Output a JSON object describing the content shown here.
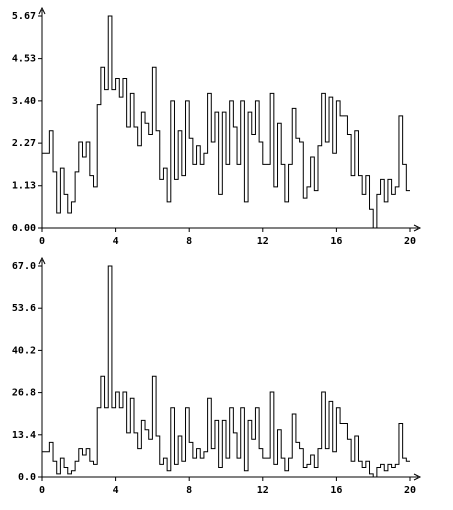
{
  "chart_data": [
    {
      "type": "line",
      "step": true,
      "color": "#000000",
      "x": [
        0,
        0.2,
        0.4,
        0.6,
        0.8,
        1,
        1.2,
        1.4,
        1.6,
        1.8,
        2,
        2.2,
        2.4,
        2.6,
        2.8,
        3,
        3.2,
        3.4,
        3.6,
        3.8,
        4,
        4.2,
        4.4,
        4.6,
        4.8,
        5,
        5.2,
        5.4,
        5.6,
        5.8,
        6,
        6.2,
        6.4,
        6.6,
        6.8,
        7,
        7.2,
        7.4,
        7.6,
        7.8,
        8,
        8.2,
        8.4,
        8.6,
        8.8,
        9,
        9.2,
        9.4,
        9.6,
        9.8,
        10,
        10.2,
        10.4,
        10.6,
        10.8,
        11,
        11.2,
        11.4,
        11.6,
        11.8,
        12,
        12.2,
        12.4,
        12.6,
        12.8,
        13,
        13.2,
        13.4,
        13.6,
        13.8,
        14,
        14.2,
        14.4,
        14.6,
        14.8,
        15,
        15.2,
        15.4,
        15.6,
        15.8,
        16,
        16.2,
        16.4,
        16.6,
        16.8,
        17,
        17.2,
        17.4,
        17.6,
        17.8,
        18,
        18.2,
        18.4,
        18.6,
        18.8,
        19,
        19.2,
        19.4,
        19.6,
        19.8
      ],
      "values": [
        2.0,
        2.0,
        2.6,
        1.5,
        0.4,
        1.6,
        0.9,
        0.4,
        0.7,
        1.5,
        2.3,
        1.9,
        2.3,
        1.4,
        1.1,
        3.3,
        4.3,
        3.7,
        5.67,
        3.7,
        4.0,
        3.5,
        4.0,
        2.7,
        3.6,
        2.7,
        2.2,
        3.1,
        2.8,
        2.5,
        4.3,
        2.6,
        1.3,
        1.6,
        0.7,
        3.4,
        1.3,
        2.6,
        1.4,
        3.4,
        2.4,
        1.7,
        2.2,
        1.7,
        2.0,
        3.6,
        2.3,
        3.1,
        0.9,
        3.1,
        1.7,
        3.4,
        2.7,
        1.7,
        3.4,
        0.7,
        3.1,
        2.5,
        3.4,
        2.3,
        1.7,
        1.7,
        3.6,
        1.1,
        2.8,
        1.7,
        0.7,
        1.7,
        3.2,
        2.4,
        2.3,
        0.8,
        1.1,
        1.9,
        1.0,
        2.2,
        3.6,
        2.3,
        3.5,
        2.0,
        3.4,
        3.0,
        3.0,
        2.5,
        1.4,
        2.6,
        1.4,
        0.9,
        1.4,
        0.5,
        0.0,
        0.9,
        1.3,
        0.7,
        1.3,
        0.9,
        1.1,
        3.0,
        1.7,
        1.0
      ],
      "xlim": [
        0,
        20
      ],
      "xticks": [
        0,
        4,
        8,
        12,
        16,
        20
      ],
      "ylim": [
        0,
        5.67
      ],
      "yticks": [
        {
          "value": 0,
          "label": "0.00"
        },
        1.13,
        2.27,
        {
          "value": 3.4,
          "label": "3.40"
        },
        4.53,
        5.67
      ]
    },
    {
      "type": "line",
      "step": true,
      "color": "#000000",
      "x": [
        0,
        0.2,
        0.4,
        0.6,
        0.8,
        1,
        1.2,
        1.4,
        1.6,
        1.8,
        2,
        2.2,
        2.4,
        2.6,
        2.8,
        3,
        3.2,
        3.4,
        3.6,
        3.8,
        4,
        4.2,
        4.4,
        4.6,
        4.8,
        5,
        5.2,
        5.4,
        5.6,
        5.8,
        6,
        6.2,
        6.4,
        6.6,
        6.8,
        7,
        7.2,
        7.4,
        7.6,
        7.8,
        8,
        8.2,
        8.4,
        8.6,
        8.8,
        9,
        9.2,
        9.4,
        9.6,
        9.8,
        10,
        10.2,
        10.4,
        10.6,
        10.8,
        11,
        11.2,
        11.4,
        11.6,
        11.8,
        12,
        12.2,
        12.4,
        12.6,
        12.8,
        13,
        13.2,
        13.4,
        13.6,
        13.8,
        14,
        14.2,
        14.4,
        14.6,
        14.8,
        15,
        15.2,
        15.4,
        15.6,
        15.8,
        16,
        16.2,
        16.4,
        16.6,
        16.8,
        17,
        17.2,
        17.4,
        17.6,
        17.8,
        18,
        18.2,
        18.4,
        18.6,
        18.8,
        19,
        19.2,
        19.4,
        19.6,
        19.8
      ],
      "values": [
        8,
        8,
        11,
        5,
        1,
        6,
        3,
        1,
        2,
        5,
        9,
        7,
        9,
        5,
        4,
        22,
        32,
        22,
        67,
        22,
        27,
        22,
        27,
        14,
        25,
        14,
        9,
        18,
        15,
        12,
        32,
        13,
        4,
        6,
        2,
        22,
        4,
        13,
        5,
        22,
        11,
        6,
        9,
        6,
        8,
        25,
        9,
        18,
        3,
        18,
        6,
        22,
        14,
        6,
        22,
        2,
        18,
        12,
        22,
        9,
        6,
        6,
        27,
        4,
        15,
        6,
        2,
        6,
        20,
        11,
        9,
        3,
        4,
        7,
        3,
        9,
        27,
        9,
        24,
        8,
        22,
        17,
        17,
        12,
        5,
        13,
        5,
        3,
        5,
        1,
        0,
        3,
        4,
        2,
        4,
        3,
        4,
        17,
        6,
        5
      ],
      "xlim": [
        0,
        20
      ],
      "xticks": [
        0,
        4,
        8,
        12,
        16,
        20
      ],
      "ylim": [
        0,
        67
      ],
      "yticks": [
        {
          "value": 0,
          "label": "0.0"
        },
        13.4,
        26.8,
        40.2,
        53.6,
        {
          "value": 67,
          "label": "67.0"
        }
      ]
    }
  ]
}
